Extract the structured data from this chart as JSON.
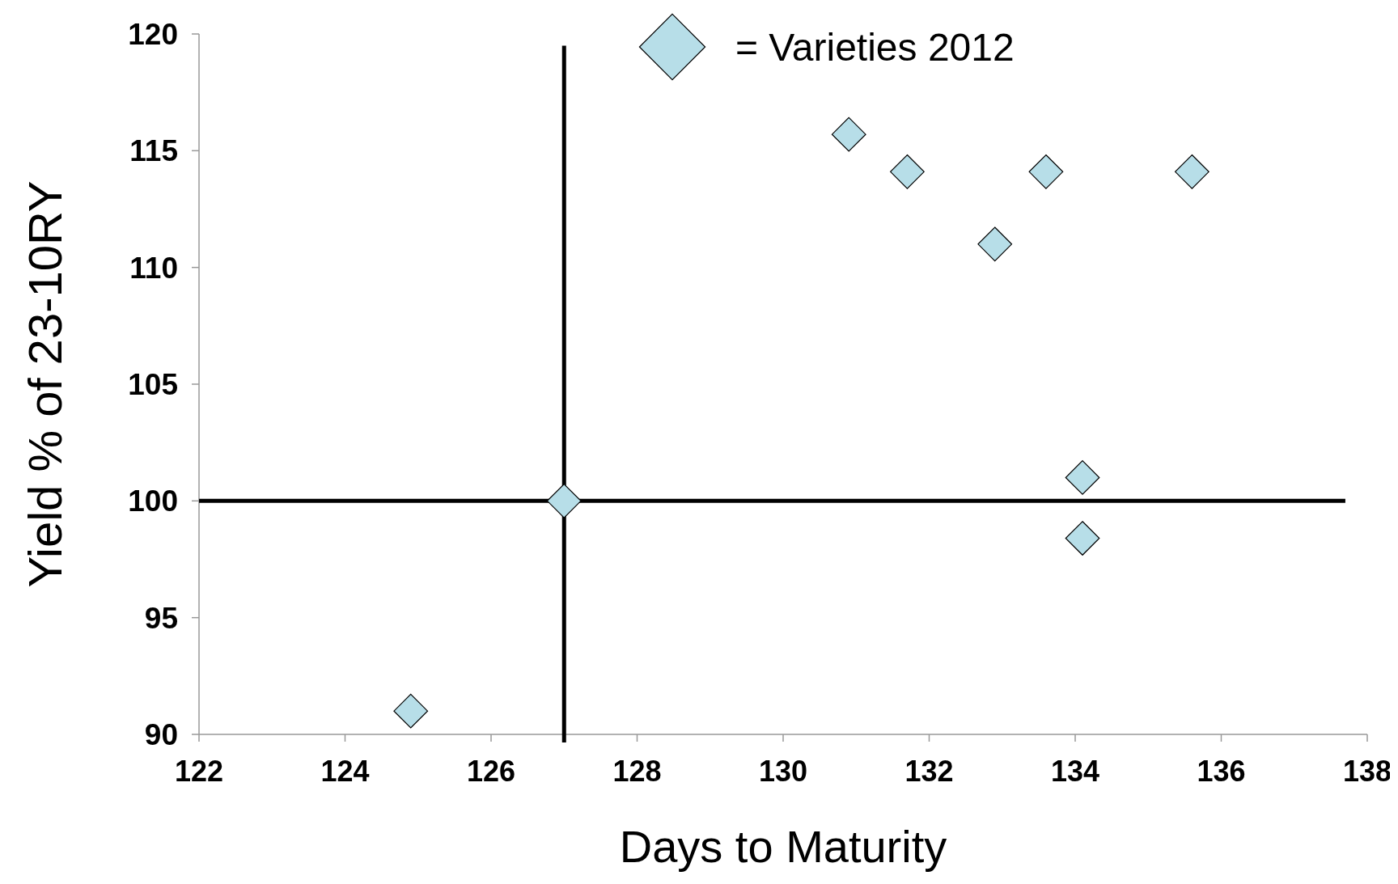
{
  "chart_data": {
    "type": "scatter",
    "xlabel": "Days to Maturity",
    "ylabel": "Yield % of 23-10RY",
    "xlim": [
      122,
      138
    ],
    "xticks": [
      122,
      124,
      126,
      128,
      130,
      132,
      134,
      136,
      138
    ],
    "ylim": [
      90,
      120
    ],
    "yticks": [
      90,
      95,
      100,
      105,
      110,
      115,
      120
    ],
    "series": [
      {
        "name": "= Varieties 2012",
        "color": "#b7dee8",
        "marker": "diamond",
        "x": [
          124.9,
          127,
          130.9,
          131.7,
          132.9,
          133.6,
          134.1,
          134.1,
          135.6
        ],
        "values": [
          91,
          100,
          115.7,
          114.1,
          111,
          114.1,
          101,
          98.4,
          114.1
        ]
      }
    ],
    "ref_lines": [
      {
        "axis": "x",
        "value": 127,
        "color": "#000000"
      },
      {
        "axis": "y",
        "value": 100,
        "color": "#000000"
      }
    ],
    "legend": "top",
    "grid": false
  }
}
